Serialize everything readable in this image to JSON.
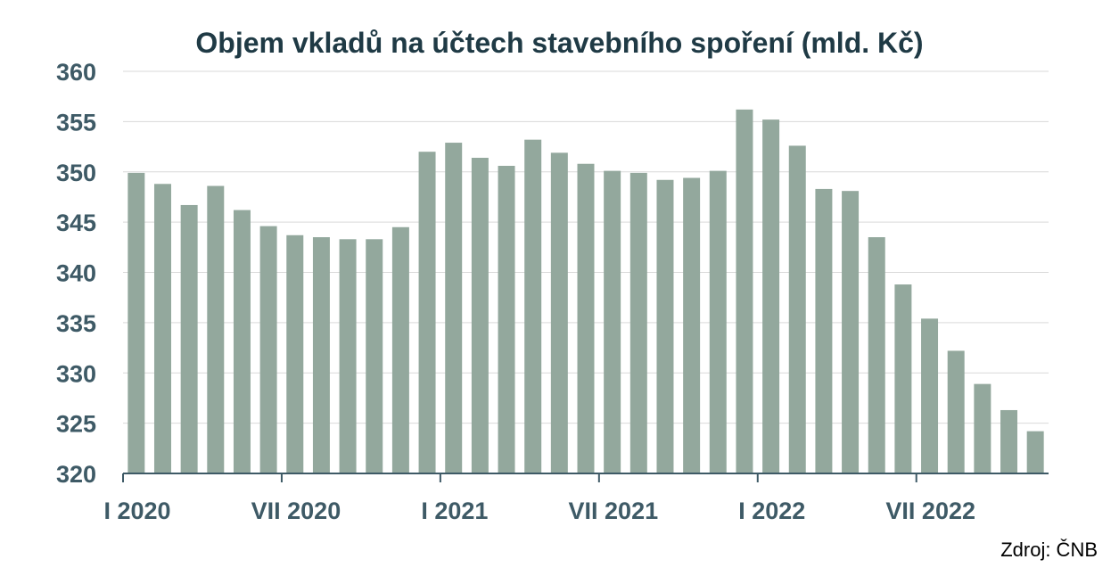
{
  "chart_data": {
    "type": "bar",
    "title": "Objem vkladů na účtech stavebního spoření (mld. Kč)",
    "xlabel": "",
    "ylabel": "",
    "ylim": [
      320,
      360
    ],
    "yticks": [
      320,
      325,
      330,
      335,
      340,
      345,
      350,
      355,
      360
    ],
    "grid": true,
    "categories": [
      "I 2020",
      "II 2020",
      "III 2020",
      "IV 2020",
      "V 2020",
      "VI 2020",
      "VII 2020",
      "VIII 2020",
      "IX 2020",
      "X 2020",
      "XI 2020",
      "XII 2020",
      "I 2021",
      "II 2021",
      "III 2021",
      "IV 2021",
      "V 2021",
      "VI 2021",
      "VII 2021",
      "VIII 2021",
      "IX 2021",
      "X 2021",
      "XI 2021",
      "XII 2021",
      "I 2022",
      "II 2022",
      "III 2022",
      "IV 2022",
      "V 2022",
      "VI 2022",
      "VII 2022",
      "VIII 2022",
      "IX 2022",
      "X 2022",
      "XI 2022"
    ],
    "values": [
      349.9,
      348.8,
      346.7,
      348.6,
      346.2,
      344.6,
      343.7,
      343.5,
      343.3,
      343.3,
      344.5,
      352.0,
      352.9,
      351.4,
      350.6,
      353.2,
      351.9,
      350.8,
      350.1,
      349.9,
      349.2,
      349.4,
      350.1,
      356.2,
      355.2,
      352.6,
      348.3,
      348.1,
      343.5,
      338.8,
      335.4,
      332.2,
      328.9,
      326.3,
      324.2
    ],
    "x_tick_labels": [
      "I 2020",
      "VII 2020",
      "I 2021",
      "VII 2021",
      "I 2022",
      "VII 2022"
    ],
    "x_tick_indices": [
      0,
      6,
      12,
      18,
      24,
      30
    ],
    "bar_color": "#93a89d",
    "grid_color": "#d9d9d9",
    "axis_color": "#3e5a66"
  },
  "source": "Zdroj: ČNB"
}
